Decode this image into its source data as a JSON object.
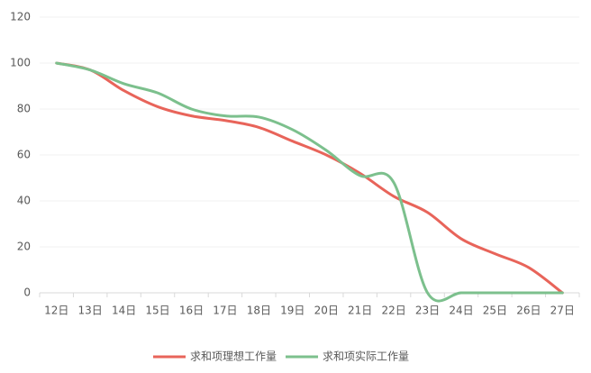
{
  "chart_data": {
    "type": "line",
    "categories": [
      "12日",
      "13日",
      "14日",
      "15日",
      "16日",
      "17日",
      "18日",
      "19日",
      "20日",
      "21日",
      "22日",
      "23日",
      "24日",
      "25日",
      "26日",
      "27日"
    ],
    "series": [
      {
        "name": "求和项理想工作量",
        "color": "#e8645a",
        "values": [
          100,
          97,
          88,
          81,
          77,
          75,
          72,
          66,
          60,
          52,
          42,
          35,
          23.5,
          17,
          11,
          0
        ]
      },
      {
        "name": "求和项实际工作量",
        "color": "#7cc08d",
        "values": [
          100,
          97,
          91,
          87,
          80,
          77,
          76.5,
          71,
          62,
          51,
          48,
          0,
          0,
          0,
          0,
          0
        ]
      }
    ],
    "ylim": [
      0,
      120
    ],
    "yticks": [
      0,
      20,
      40,
      60,
      80,
      100,
      120
    ],
    "legend": "bottom"
  }
}
